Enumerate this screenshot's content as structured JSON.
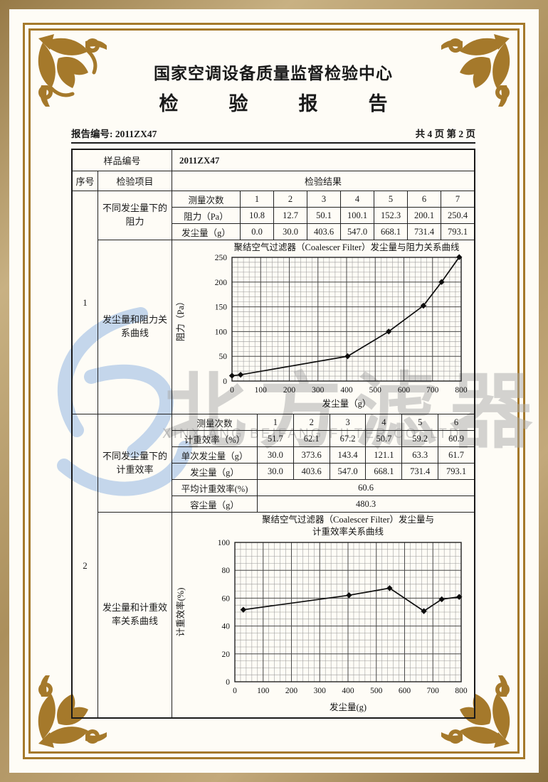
{
  "header": {
    "org_name": "国家空调设备质量监督检验中心",
    "doc_title": "检　验　报　告",
    "report_no": "报告编号: 2011ZX47",
    "page_info": "共 4 页 第 2 页"
  },
  "table": {
    "sample_no_label": "样品编号",
    "sample_no_value": "2011ZX47",
    "col_serial": "序号",
    "col_item": "检验项目",
    "col_result": "检验结果",
    "section1": {
      "serial": "1",
      "item_data": "不同发尘量下的阻力",
      "item_chart": "发尘量和阻力关系曲线",
      "rows": [
        {
          "label": "测量次数",
          "values": [
            "1",
            "2",
            "3",
            "4",
            "5",
            "6",
            "7"
          ]
        },
        {
          "label": "阻力（Pa）",
          "values": [
            "10.8",
            "12.7",
            "50.1",
            "100.1",
            "152.3",
            "200.1",
            "250.4"
          ]
        },
        {
          "label": "发尘量（g）",
          "values": [
            "0.0",
            "30.0",
            "403.6",
            "547.0",
            "668.1",
            "731.4",
            "793.1"
          ]
        }
      ]
    },
    "section2": {
      "serial": "2",
      "item_data": "不同发尘量下的计重效率",
      "item_chart": "发尘量和计重效率关系曲线",
      "rows": [
        {
          "label": "测量次数",
          "values": [
            "1",
            "2",
            "3",
            "4",
            "5",
            "6"
          ]
        },
        {
          "label": "计重效率（%）",
          "values": [
            "51.7",
            "62.1",
            "67.2",
            "50.7",
            "59.2",
            "60.9"
          ]
        },
        {
          "label": "单次发尘量（g）",
          "values": [
            "30.0",
            "373.6",
            "143.4",
            "121.1",
            "63.3",
            "61.7"
          ]
        },
        {
          "label": "发尘量（g）",
          "values": [
            "30.0",
            "403.6",
            "547.0",
            "668.1",
            "731.4",
            "793.1"
          ]
        }
      ],
      "summary_rows": [
        {
          "label": "平均计重效率(%)",
          "value": "60.6"
        },
        {
          "label": "容尘量（g）",
          "value": "480.3"
        }
      ]
    }
  },
  "watermark": {
    "cn": "北方滤器",
    "en": "XINXIANG BEIFANG FILTER CO.,LTD.",
    "logo_color": "#b6cde9",
    "text_color": "#a9a9a9"
  },
  "colors": {
    "frame_gold": "#a5792b",
    "band_tan": "#ab8f5c",
    "ink": "#1a1a1a"
  },
  "chart_data": [
    {
      "type": "line",
      "title": "聚结空气过滤器（Coalescer Filter）发尘量与阻力关系曲线",
      "xlabel": "发尘量（g）",
      "ylabel": "阻力（Pa）",
      "xlim": [
        0,
        800
      ],
      "ylim": [
        0,
        250
      ],
      "xticks": [
        0,
        100,
        200,
        300,
        400,
        500,
        600,
        700,
        800
      ],
      "yticks": [
        0,
        50,
        100,
        150,
        200,
        250
      ],
      "x_minor": 20,
      "y_minor": 10,
      "grid": true,
      "legend": false,
      "marker": "diamond",
      "x": [
        0,
        30,
        403.6,
        547.0,
        668.1,
        731.4,
        793.1
      ],
      "y": [
        10.8,
        12.7,
        50.1,
        100.1,
        152.3,
        200.1,
        250.4
      ]
    },
    {
      "type": "line",
      "title": "聚结空气过滤器（Coalescer Filter）发尘量与",
      "title2": "计重效率关系曲线",
      "xlabel": "发尘量(g)",
      "ylabel": "计重效率(%)",
      "xlim": [
        0,
        800
      ],
      "ylim": [
        0,
        100
      ],
      "xticks": [
        0,
        100,
        200,
        300,
        400,
        500,
        600,
        700,
        800
      ],
      "yticks": [
        0,
        20,
        40,
        60,
        80,
        100
      ],
      "x_minor": 20,
      "y_minor": 5,
      "grid": true,
      "legend": false,
      "marker": "diamond",
      "x": [
        30,
        403.6,
        547.0,
        668.1,
        731.4,
        793.1
      ],
      "y": [
        51.7,
        62.1,
        67.2,
        50.7,
        59.2,
        60.9
      ]
    }
  ]
}
